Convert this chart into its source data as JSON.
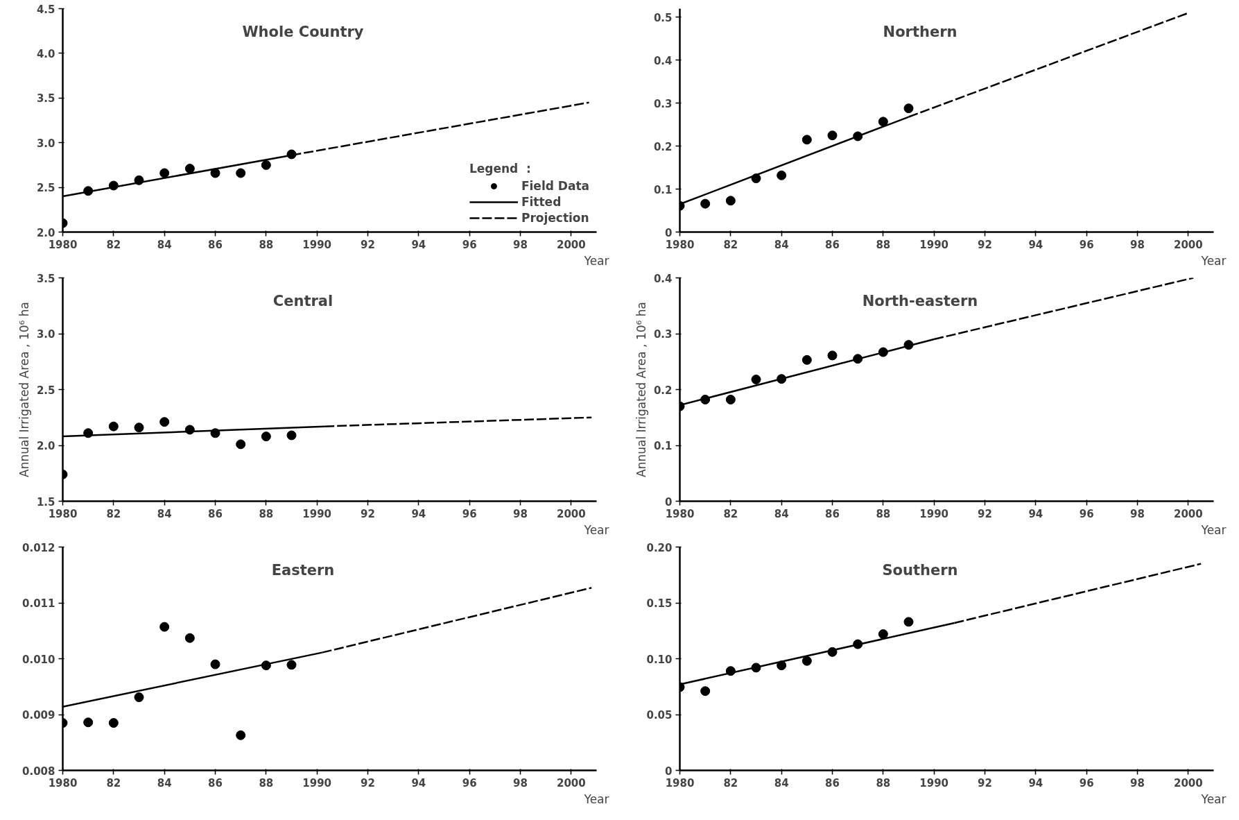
{
  "chart_data": [
    {
      "type": "scatter",
      "title": "Whole Country",
      "xlabel": "Year",
      "xlim": [
        1980,
        2001
      ],
      "xticks": [
        {
          "value": 1980,
          "label": "1980"
        },
        {
          "value": 1982,
          "label": "82"
        },
        {
          "value": 1984,
          "label": "84"
        },
        {
          "value": 1986,
          "label": "86"
        },
        {
          "value": 1988,
          "label": "88"
        },
        {
          "value": 1990,
          "label": "1990"
        },
        {
          "value": 1992,
          "label": "92"
        },
        {
          "value": 1994,
          "label": "94"
        },
        {
          "value": 1996,
          "label": "96"
        },
        {
          "value": 1998,
          "label": "98"
        },
        {
          "value": 2000,
          "label": "2000"
        }
      ],
      "ylim": [
        2,
        4.5
      ],
      "yticks": [
        {
          "value": 2,
          "label": "2.0"
        },
        2.5,
        {
          "value": 3,
          "label": "3.0"
        },
        3.5,
        {
          "value": 4,
          "label": "4.0"
        },
        4.5
      ],
      "legend": "bottom right",
      "legend_title": "Legend  :",
      "series": [
        {
          "name": "Field Data",
          "type": "scatter",
          "marker": "circle",
          "color": "#000000",
          "x": [
            1980,
            1981,
            1982,
            1983,
            1984,
            1985,
            1986,
            1987,
            1988,
            1989
          ],
          "values": [
            2.1,
            2.46,
            2.52,
            2.58,
            2.66,
            2.71,
            2.66,
            2.66,
            2.75,
            2.87
          ]
        },
        {
          "name": "Fitted",
          "type": "line",
          "line_style": "solid",
          "color": "#000000",
          "x": [
            1980,
            1989
          ],
          "values": [
            2.4,
            2.86
          ]
        },
        {
          "name": "Projection",
          "type": "line",
          "line_style": "dashed",
          "color": "#000000",
          "x": [
            1989,
            2000.7
          ],
          "values": [
            2.86,
            3.45
          ]
        }
      ]
    },
    {
      "type": "scatter",
      "title": "Northern",
      "xlabel": "Year",
      "xlim": [
        1980,
        2001
      ],
      "xticks": [
        {
          "value": 1980,
          "label": "1980"
        },
        {
          "value": 1982,
          "label": "82"
        },
        {
          "value": 1984,
          "label": "84"
        },
        {
          "value": 1986,
          "label": "86"
        },
        {
          "value": 1988,
          "label": "88"
        },
        {
          "value": 1990,
          "label": "1990"
        },
        {
          "value": 1992,
          "label": "92"
        },
        {
          "value": 1994,
          "label": "94"
        },
        {
          "value": 1996,
          "label": "96"
        },
        {
          "value": 1998,
          "label": "98"
        },
        {
          "value": 2000,
          "label": "2000"
        }
      ],
      "ylim": [
        0,
        0.52
      ],
      "yticks": [
        0,
        0.1,
        0.2,
        0.3,
        0.4,
        0.5
      ],
      "series": [
        {
          "type": "scatter",
          "marker": "circle",
          "color": "#000000",
          "x": [
            1980,
            1981,
            1982,
            1983,
            1984,
            1985,
            1986,
            1987,
            1988,
            1989
          ],
          "values": [
            0.061,
            0.066,
            0.073,
            0.125,
            0.132,
            0.215,
            0.225,
            0.223,
            0.257,
            0.288
          ]
        },
        {
          "type": "line",
          "line_style": "solid",
          "color": "#000000",
          "x": [
            1980,
            1989
          ],
          "values": [
            0.065,
            0.268
          ]
        },
        {
          "type": "line",
          "line_style": "dashed",
          "color": "#000000",
          "x": [
            1989,
            2000
          ],
          "values": [
            0.268,
            0.51
          ]
        }
      ]
    },
    {
      "type": "scatter",
      "title": "Central",
      "xlabel": "Year",
      "ylabel": "Annual Irrigated Area , 10⁶ ha",
      "xlim": [
        1980,
        2001
      ],
      "xticks": [
        {
          "value": 1980,
          "label": "1980"
        },
        {
          "value": 1982,
          "label": "82"
        },
        {
          "value": 1984,
          "label": "84"
        },
        {
          "value": 1986,
          "label": "86"
        },
        {
          "value": 1988,
          "label": "88"
        },
        {
          "value": 1990,
          "label": "1990"
        },
        {
          "value": 1992,
          "label": "92"
        },
        {
          "value": 1994,
          "label": "94"
        },
        {
          "value": 1996,
          "label": "96"
        },
        {
          "value": 1998,
          "label": "98"
        },
        {
          "value": 2000,
          "label": "2000"
        }
      ],
      "ylim": [
        1.5,
        3.5
      ],
      "yticks": [
        1.5,
        {
          "value": 2,
          "label": "2.0"
        },
        2.5,
        {
          "value": 3,
          "label": "3.0"
        },
        3.5
      ],
      "series": [
        {
          "type": "scatter",
          "marker": "circle",
          "color": "#000000",
          "x": [
            1980,
            1981,
            1982,
            1983,
            1984,
            1985,
            1986,
            1987,
            1988,
            1989
          ],
          "values": [
            1.74,
            2.11,
            2.17,
            2.16,
            2.21,
            2.14,
            2.11,
            2.01,
            2.08,
            2.09
          ]
        },
        {
          "type": "line",
          "line_style": "solid",
          "color": "#000000",
          "x": [
            1980,
            1990.3
          ],
          "values": [
            2.08,
            2.17
          ]
        },
        {
          "type": "line",
          "line_style": "dashed",
          "color": "#000000",
          "x": [
            1990.3,
            2000.8
          ],
          "values": [
            2.17,
            2.25
          ]
        }
      ]
    },
    {
      "type": "scatter",
      "title": "North-eastern",
      "xlabel": "Year",
      "ylabel": "Annual Irrigated Area , 10⁶ ha",
      "xlim": [
        1980,
        2001
      ],
      "xticks": [
        {
          "value": 1980,
          "label": "1980"
        },
        {
          "value": 1982,
          "label": "82"
        },
        {
          "value": 1984,
          "label": "84"
        },
        {
          "value": 1986,
          "label": "86"
        },
        {
          "value": 1988,
          "label": "88"
        },
        {
          "value": 1990,
          "label": "1990"
        },
        {
          "value": 1992,
          "label": "92"
        },
        {
          "value": 1994,
          "label": "94"
        },
        {
          "value": 1996,
          "label": "96"
        },
        {
          "value": 1998,
          "label": "98"
        },
        {
          "value": 2000,
          "label": "2000"
        }
      ],
      "ylim": [
        0,
        0.4
      ],
      "yticks": [
        0,
        0.1,
        0.2,
        0.3,
        0.4
      ],
      "series": [
        {
          "type": "scatter",
          "marker": "circle",
          "color": "#000000",
          "x": [
            1980,
            1981,
            1982,
            1983,
            1984,
            1985,
            1986,
            1987,
            1988,
            1989
          ],
          "values": [
            0.17,
            0.182,
            0.182,
            0.218,
            0.219,
            0.253,
            0.261,
            0.255,
            0.267,
            0.28
          ]
        },
        {
          "type": "line",
          "line_style": "solid",
          "color": "#000000",
          "x": [
            1980,
            1990
          ],
          "values": [
            0.172,
            0.29
          ]
        },
        {
          "type": "line",
          "line_style": "dashed",
          "color": "#000000",
          "x": [
            1990,
            2000.2
          ],
          "values": [
            0.29,
            0.4
          ]
        }
      ]
    },
    {
      "type": "scatter",
      "title": "Eastern",
      "xlabel": "Year",
      "xlim": [
        1980,
        2001
      ],
      "xticks": [
        {
          "value": 1980,
          "label": "1980"
        },
        {
          "value": 1982,
          "label": "82"
        },
        {
          "value": 1984,
          "label": "84"
        },
        {
          "value": 1986,
          "label": "86"
        },
        {
          "value": 1988,
          "label": "88"
        },
        {
          "value": 1990,
          "label": "1990"
        },
        {
          "value": 1992,
          "label": "92"
        },
        {
          "value": 1994,
          "label": "94"
        },
        {
          "value": 1996,
          "label": "96"
        },
        {
          "value": 1998,
          "label": "98"
        },
        {
          "value": 2000,
          "label": "2000"
        }
      ],
      "ylim": [
        0.008,
        0.012
      ],
      "yticks": [
        {
          "value": 0.008,
          "label": "0.008"
        },
        {
          "value": 0.009,
          "label": "0.009"
        },
        {
          "value": 0.01,
          "label": "0.010"
        },
        {
          "value": 0.011,
          "label": "0.011"
        },
        {
          "value": 0.012,
          "label": "0.012"
        }
      ],
      "series": [
        {
          "type": "scatter",
          "marker": "circle",
          "color": "#000000",
          "x": [
            1980,
            1981,
            1982,
            1983,
            1984,
            1985,
            1986,
            1987,
            1988,
            1989
          ],
          "values": [
            0.00885,
            0.00886,
            0.00885,
            0.00931,
            0.01057,
            0.01037,
            0.0099,
            0.00863,
            0.00988,
            0.00989
          ]
        },
        {
          "type": "line",
          "line_style": "solid",
          "color": "#000000",
          "x": [
            1980,
            1990.2
          ],
          "values": [
            0.00914,
            0.01011
          ]
        },
        {
          "type": "line",
          "line_style": "dashed",
          "color": "#000000",
          "x": [
            1990.2,
            2000.8
          ],
          "values": [
            0.01011,
            0.01127
          ]
        }
      ]
    },
    {
      "type": "scatter",
      "title": "Southern",
      "xlabel": "Year",
      "xlim": [
        1980,
        2001
      ],
      "xticks": [
        {
          "value": 1980,
          "label": "1980"
        },
        {
          "value": 1982,
          "label": "82"
        },
        {
          "value": 1984,
          "label": "84"
        },
        {
          "value": 1986,
          "label": "86"
        },
        {
          "value": 1988,
          "label": "88"
        },
        {
          "value": 1990,
          "label": "1990"
        },
        {
          "value": 1992,
          "label": "92"
        },
        {
          "value": 1994,
          "label": "94"
        },
        {
          "value": 1996,
          "label": "96"
        },
        {
          "value": 1998,
          "label": "98"
        },
        {
          "value": 2000,
          "label": "2000"
        }
      ],
      "ylim": [
        0,
        0.2
      ],
      "yticks": [
        0,
        {
          "value": 0.05,
          "label": "0.05"
        },
        {
          "value": 0.1,
          "label": "0.10"
        },
        0.15,
        {
          "value": 0.2,
          "label": "0.20"
        }
      ],
      "series": [
        {
          "type": "scatter",
          "marker": "circle",
          "color": "#000000",
          "x": [
            1980,
            1981,
            1982,
            1983,
            1984,
            1985,
            1986,
            1987,
            1988,
            1989
          ],
          "values": [
            0.0746,
            0.071,
            0.089,
            0.092,
            0.094,
            0.098,
            0.106,
            0.113,
            0.122,
            0.133
          ]
        },
        {
          "type": "line",
          "line_style": "solid",
          "color": "#000000",
          "x": [
            1980,
            1990.8
          ],
          "values": [
            0.077,
            0.132
          ]
        },
        {
          "type": "line",
          "line_style": "dashed",
          "color": "#000000",
          "x": [
            1990.8,
            2000.5
          ],
          "values": [
            0.132,
            0.185
          ]
        }
      ]
    }
  ]
}
